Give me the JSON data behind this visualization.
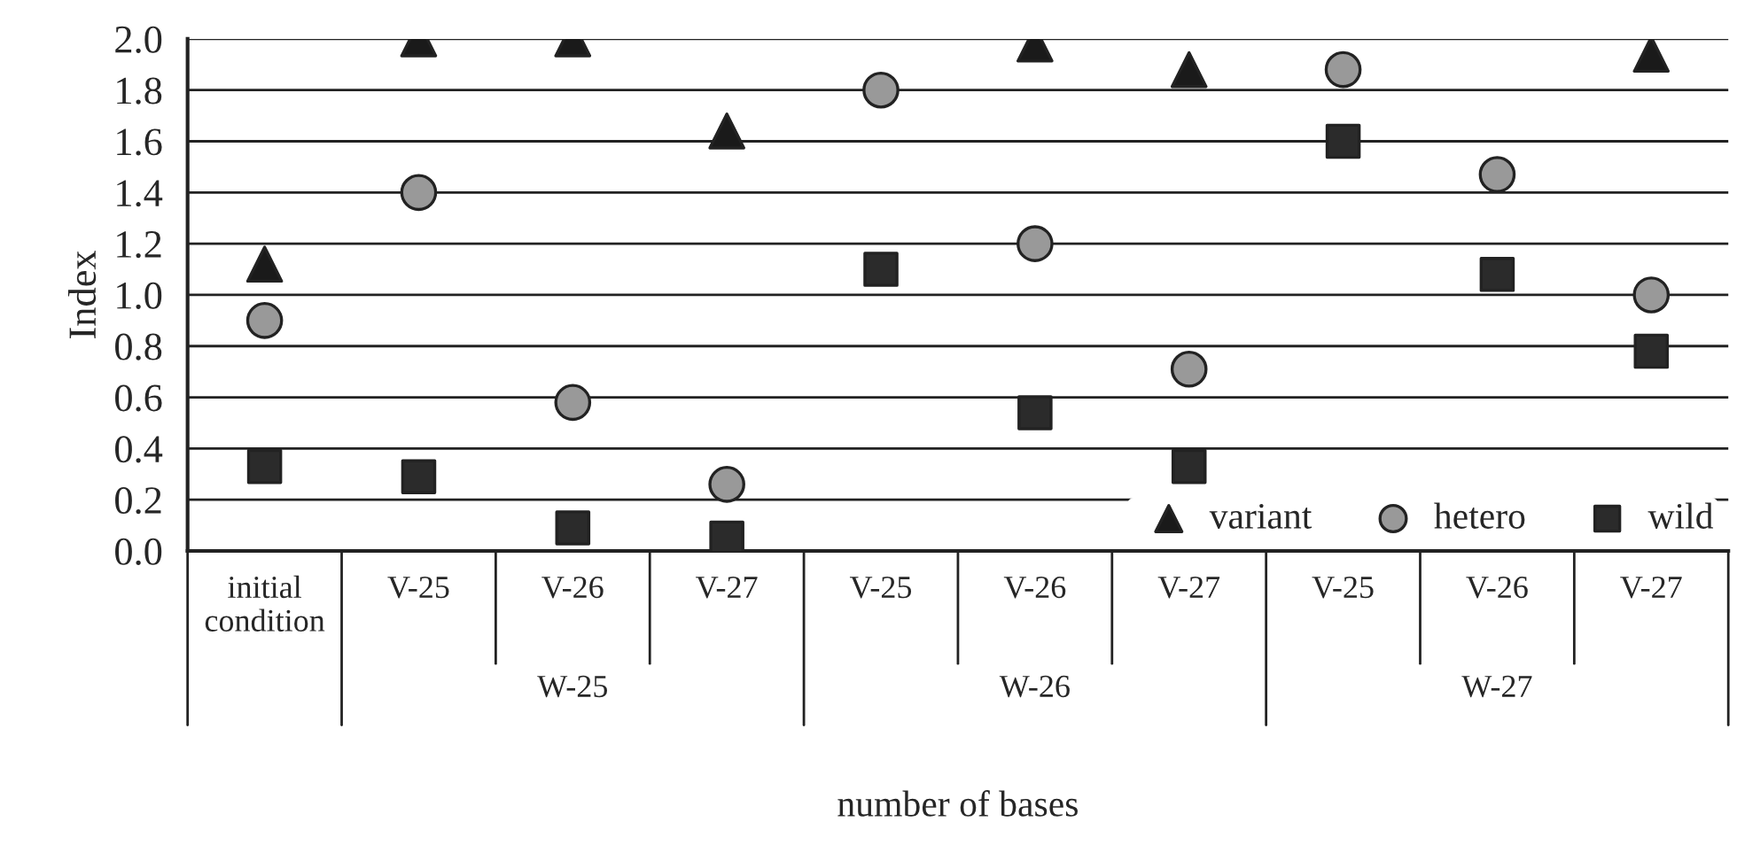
{
  "chart_data": {
    "type": "scatter",
    "xlabel": "number of bases",
    "ylabel": "Index",
    "categories": [
      "initial\ncondition",
      "V-25",
      "V-26",
      "V-27",
      "V-25",
      "V-26",
      "V-27",
      "V-25",
      "V-26",
      "V-27"
    ],
    "annotations": [
      "W-25",
      "W-26",
      "W-27"
    ],
    "series": [
      {
        "name": "variant",
        "color": "#1a1a1a",
        "marker": "triangle",
        "values": [
          1.12,
          2.0,
          2.0,
          1.64,
          null,
          1.98,
          1.88,
          null,
          null,
          1.94
        ]
      },
      {
        "name": "hetero",
        "color": "#999999",
        "marker": "circle",
        "values": [
          0.9,
          1.4,
          0.58,
          0.26,
          1.8,
          1.2,
          0.71,
          1.88,
          1.47,
          1.0
        ]
      },
      {
        "name": "wild",
        "color": "#2b2b2b",
        "marker": "square",
        "values": [
          0.33,
          0.29,
          0.09,
          0.05,
          1.1,
          0.54,
          0.33,
          1.6,
          1.08,
          0.78
        ]
      }
    ],
    "ylim": [
      0,
      2
    ],
    "yticks": [
      {
        "value": 0,
        "label": "0.0"
      },
      {
        "value": 0.2,
        "label": "0.2"
      },
      {
        "value": 0.4,
        "label": "0.4"
      },
      {
        "value": 0.6,
        "label": "0.6"
      },
      {
        "value": 0.8,
        "label": "0.8"
      },
      {
        "value": 1.0,
        "label": "1.0"
      },
      {
        "value": 1.2,
        "label": "1.2"
      },
      {
        "value": 1.4,
        "label": "1.4"
      },
      {
        "value": 1.6,
        "label": "1.6"
      },
      {
        "value": 1.8,
        "label": "1.8"
      },
      {
        "value": 2.0,
        "label": "2.0"
      }
    ],
    "grid": "y",
    "legend": "bottom right"
  }
}
